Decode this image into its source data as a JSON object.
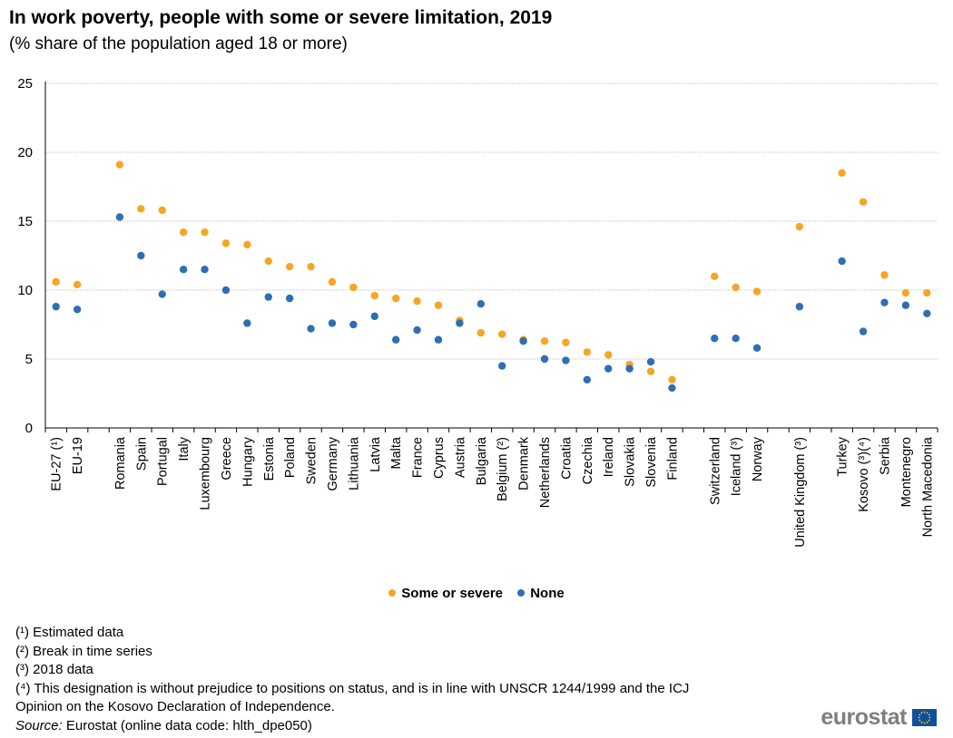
{
  "title": "In work poverty, people with some or severe limitation, 2019",
  "subtitle": "(% share of the population  aged 18 or more)",
  "colors": {
    "some": "#f5a623",
    "none": "#2e6fb4",
    "grid": "#bfbfbf",
    "axis": "#000000"
  },
  "chart_data": {
    "type": "scatter",
    "title": "In work poverty, people with some or severe limitation, 2019",
    "ylabel": "",
    "ylim": [
      0,
      25
    ],
    "yticks": [
      0,
      5,
      10,
      15,
      20,
      25
    ],
    "grid": true,
    "legend_position": "bottom-center",
    "groups": [
      [
        "EU-27 (¹)",
        "EU-19"
      ],
      [
        "Romania",
        "Spain",
        "Portugal",
        "Italy",
        "Luxembourg",
        "Greece",
        "Hungary",
        "Estonia",
        "Poland",
        "Sweden",
        "Germany",
        "Lithuania",
        "Latvia",
        "Malta",
        "France",
        "Cyprus",
        "Austria",
        "Bulgaria",
        "Belgium (²)",
        "Denmark",
        "Netherlands",
        "Croatia",
        "Czechia",
        "Ireland",
        "Slovakia",
        "Slovenia",
        "Finland"
      ],
      [
        "Switzerland",
        "Iceland (³)",
        "Norway"
      ],
      [
        "United Kingdom (³)"
      ],
      [
        "Turkey",
        "Kosovo (³)(⁴)",
        "Serbia",
        "Montenegro",
        "North Macedonia"
      ]
    ],
    "categories": [
      "EU-27 (¹)",
      "EU-19",
      "Romania",
      "Spain",
      "Portugal",
      "Italy",
      "Luxembourg",
      "Greece",
      "Hungary",
      "Estonia",
      "Poland",
      "Sweden",
      "Germany",
      "Lithuania",
      "Latvia",
      "Malta",
      "France",
      "Cyprus",
      "Austria",
      "Bulgaria",
      "Belgium (²)",
      "Denmark",
      "Netherlands",
      "Croatia",
      "Czechia",
      "Ireland",
      "Slovakia",
      "Slovenia",
      "Finland",
      "Switzerland",
      "Iceland (³)",
      "Norway",
      "United Kingdom (³)",
      "Turkey",
      "Kosovo (³)(⁴)",
      "Serbia",
      "Montenegro",
      "North Macedonia"
    ],
    "series": [
      {
        "name": "Some or severe",
        "values": [
          10.6,
          10.4,
          19.1,
          15.9,
          15.8,
          14.2,
          14.2,
          13.4,
          13.3,
          12.1,
          11.7,
          11.7,
          10.6,
          10.2,
          9.6,
          9.4,
          9.2,
          8.9,
          7.8,
          6.9,
          6.8,
          6.4,
          6.3,
          6.2,
          5.5,
          5.3,
          4.6,
          4.1,
          3.5,
          11.0,
          10.2,
          9.9,
          14.6,
          18.5,
          16.4,
          11.1,
          9.8,
          9.8
        ]
      },
      {
        "name": "None",
        "values": [
          8.8,
          8.6,
          15.3,
          12.5,
          9.7,
          11.5,
          11.5,
          10.0,
          7.6,
          9.5,
          9.4,
          7.2,
          7.6,
          7.5,
          8.1,
          6.4,
          7.1,
          6.4,
          7.6,
          9.0,
          4.5,
          6.3,
          5.0,
          4.9,
          3.5,
          4.3,
          4.3,
          4.8,
          2.9,
          6.5,
          6.5,
          5.8,
          8.8,
          12.1,
          7.0,
          9.1,
          8.9,
          8.3
        ]
      }
    ]
  },
  "legend": {
    "some_label": "Some or severe",
    "none_label": "None"
  },
  "notes": [
    "(¹) Estimated data",
    "(²) Break in time series",
    "(³) 2018 data",
    "(⁴) This designation is without prejudice to positions on status, and is in line with UNSCR 1244/1999 and the ICJ",
    "Opinion on the Kosovo Declaration of Independence."
  ],
  "source": {
    "label": "Source:",
    "text": " Eurostat (online data code: hlth_dpe050)"
  },
  "logo": {
    "text": "eurostat",
    "flag_icon": "eu-flag-icon"
  }
}
